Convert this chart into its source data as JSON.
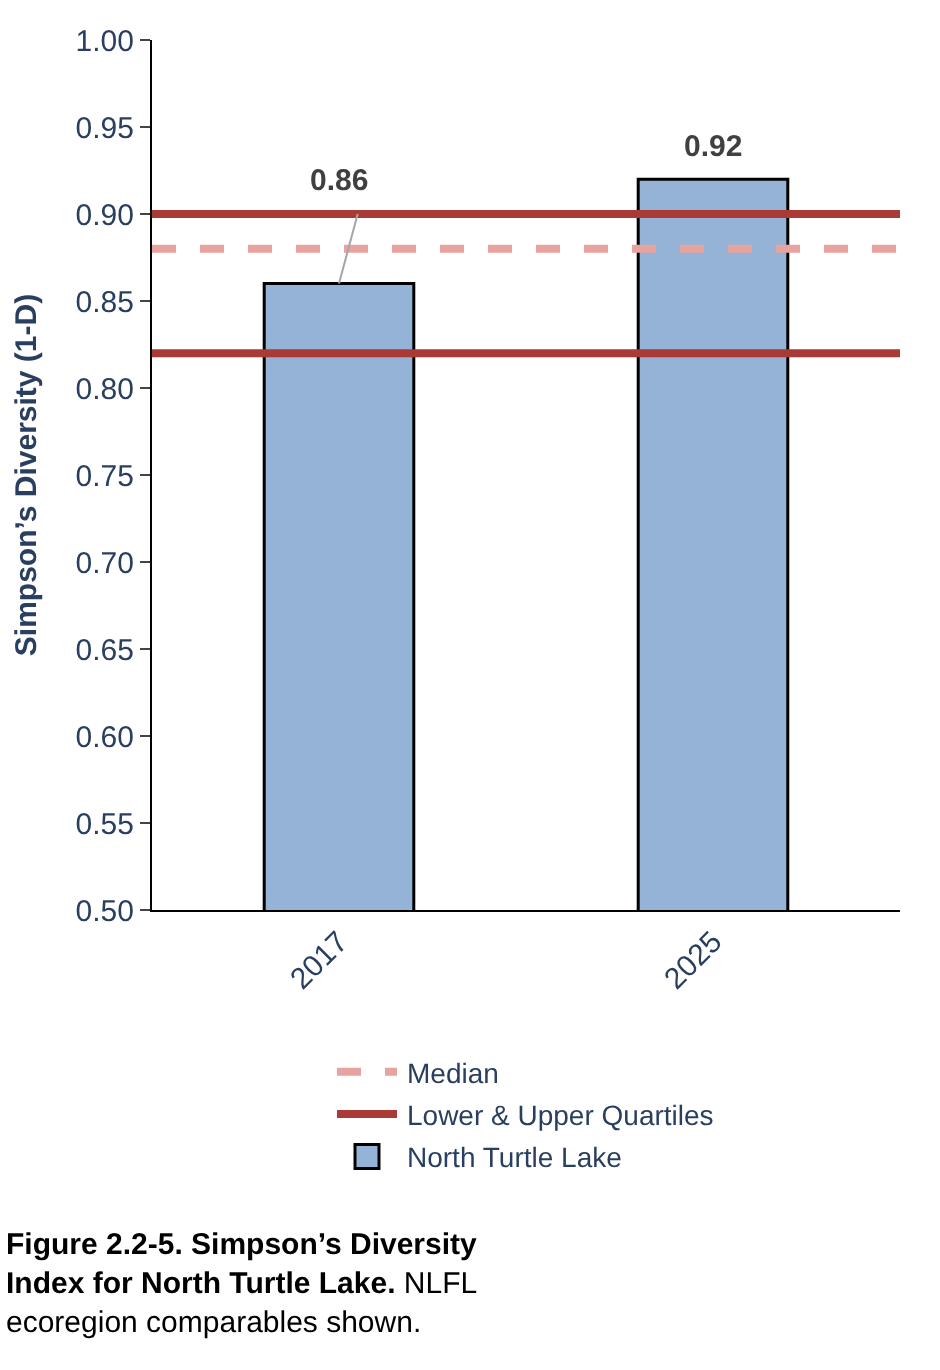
{
  "chart_data": {
    "type": "bar",
    "categories": [
      "2017",
      "2025"
    ],
    "series": [
      {
        "name": "North Turtle Lake",
        "color": "#95b3d7",
        "values": [
          0.86,
          0.92
        ]
      }
    ],
    "ylabel": "Simpson’s Diversity (1-D)",
    "ylim": [
      0.5,
      1.0
    ],
    "yticks": [
      {
        "value": 0.5,
        "label": "0.50"
      },
      {
        "value": 0.55,
        "label": "0.55"
      },
      {
        "value": 0.6,
        "label": "0.60"
      },
      {
        "value": 0.65,
        "label": "0.65"
      },
      {
        "value": 0.7,
        "label": "0.70"
      },
      {
        "value": 0.75,
        "label": "0.75"
      },
      {
        "value": 0.8,
        "label": "0.80"
      },
      {
        "value": 0.85,
        "label": "0.85"
      },
      {
        "value": 0.9,
        "label": "0.90"
      },
      {
        "value": 0.95,
        "label": "0.95"
      },
      {
        "value": 1.0,
        "label": "1.00"
      }
    ],
    "ref_lines": [
      {
        "axis": "y",
        "value": 0.88,
        "label": "Median",
        "color": "#e6a3a0",
        "line_style": "dashed"
      },
      {
        "axis": "y",
        "value": 0.82,
        "label": "Lower & Upper Quartiles",
        "color": "#a93a36",
        "line_style": "solid"
      },
      {
        "axis": "y",
        "value": 0.9,
        "label": null,
        "color": "#a93a36",
        "line_style": "solid"
      }
    ],
    "data_labels": true,
    "legend": "bottom",
    "annotations": [
      "Figure 2.2-5. Simpson’s Diversity Index for North Turtle Lake.",
      "NLFL ecoregion comparables shown."
    ]
  }
}
